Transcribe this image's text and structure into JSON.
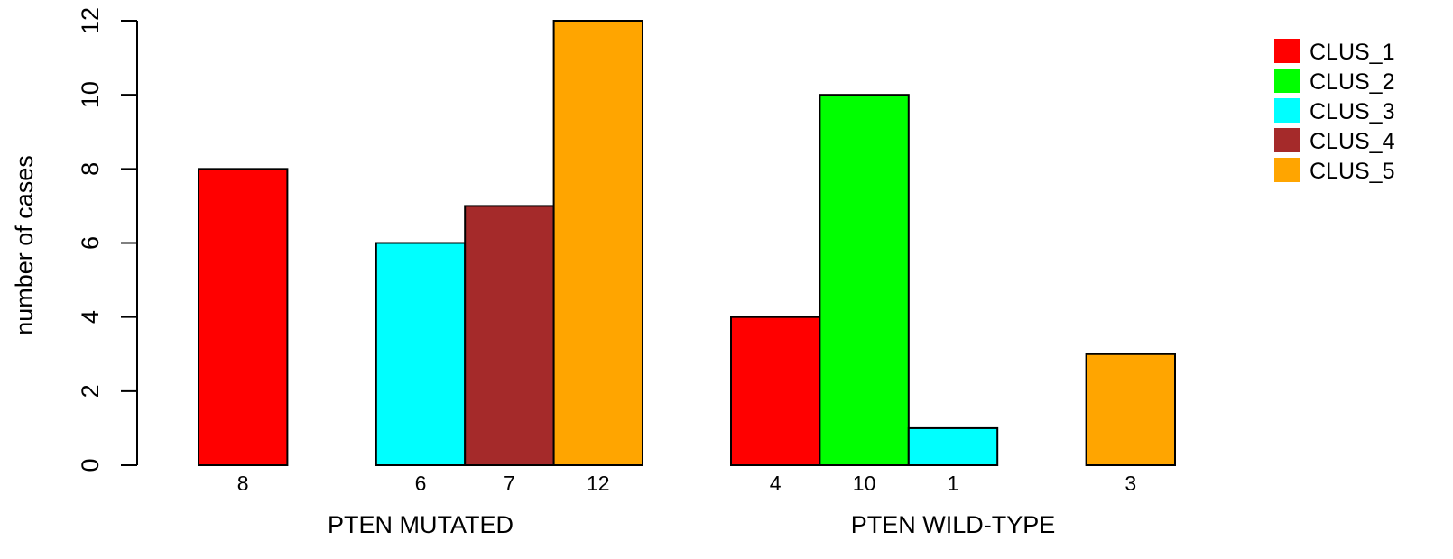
{
  "chart_data": {
    "type": "bar",
    "ylabel": "number of cases",
    "ylim": [
      0,
      12
    ],
    "yticks": [
      0,
      2,
      4,
      6,
      8,
      10,
      12
    ],
    "grid": false,
    "legend_position": "top-right",
    "series": [
      {
        "name": "CLUS_1",
        "color": "#ff0000"
      },
      {
        "name": "CLUS_2",
        "color": "#00ff00"
      },
      {
        "name": "CLUS_3",
        "color": "#00ffff"
      },
      {
        "name": "CLUS_4",
        "color": "#a52a2a"
      },
      {
        "name": "CLUS_5",
        "color": "#ffa500"
      }
    ],
    "groups": [
      {
        "label": "PTEN MUTATED",
        "values": [
          8,
          0,
          6,
          7,
          12
        ],
        "value_labels": [
          "8",
          "",
          "6",
          "7",
          "12"
        ]
      },
      {
        "label": "PTEN WILD-TYPE",
        "values": [
          4,
          10,
          1,
          0,
          3
        ],
        "value_labels": [
          "4",
          "10",
          "1",
          "",
          "3"
        ]
      }
    ]
  }
}
